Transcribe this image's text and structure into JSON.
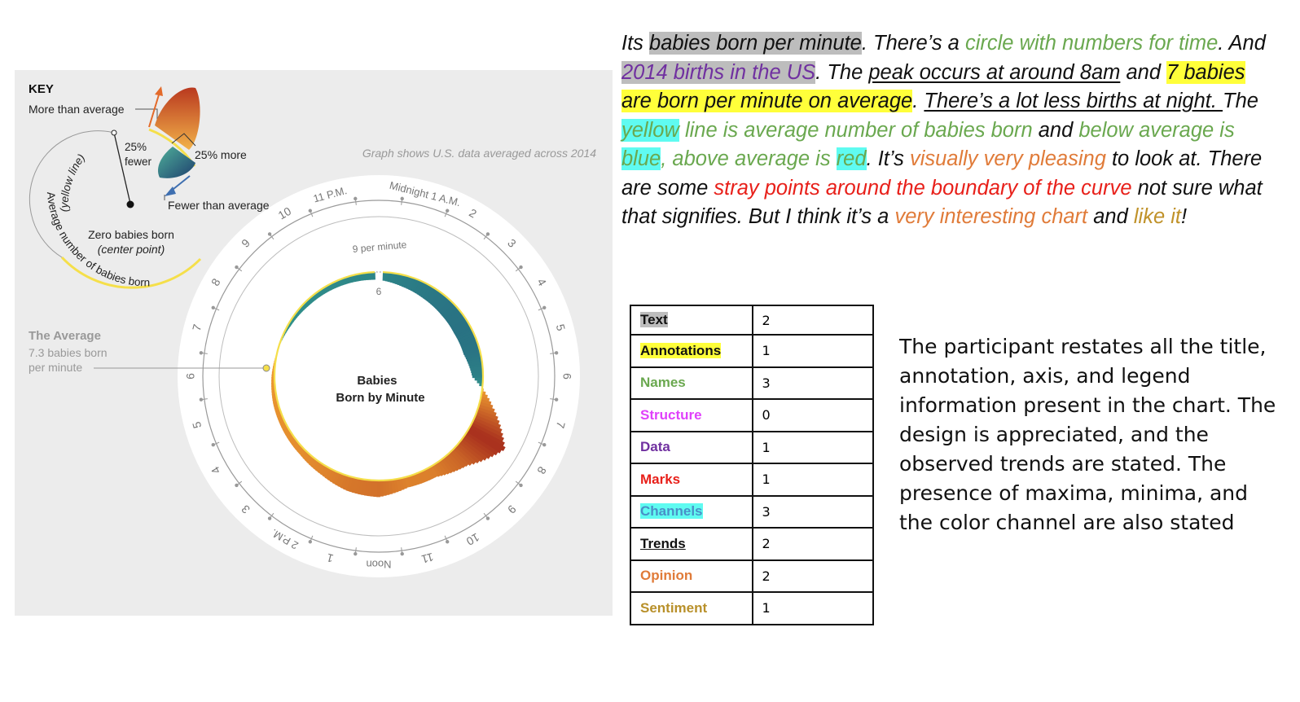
{
  "chart_data": {
    "type": "radial-area",
    "title": "Babies\nBorn by Minute",
    "note": "Graph shows U.S. data averaged across 2014",
    "average": {
      "label": "The Average",
      "value_text": "7.3 babies born\nper minute",
      "value": 7.3
    },
    "radial_ticks": [
      {
        "label": "6",
        "value": 6
      },
      {
        "label": "9 per minute",
        "value": 9
      }
    ],
    "hour_labels": [
      "Midnight 1 A.M.",
      "2",
      "3",
      "4",
      "5",
      "6",
      "7",
      "8",
      "9",
      "10",
      "11",
      "Noon",
      "1",
      "2 P.M.",
      "3",
      "4",
      "5",
      "6",
      "7",
      "8",
      "9",
      "10",
      "11 P.M."
    ],
    "key": {
      "title": "KEY",
      "more": "More than average",
      "pct_fewer": "25%\nfewer",
      "pct_more": "25% more",
      "fewer": "Fewer than average",
      "zero": "Zero babies born",
      "zero_note": "(center point)",
      "arc_label_1": "(yellow line)",
      "arc_label_2": "Average number of babies born"
    },
    "series": [
      {
        "hours": [
          0,
          1,
          2,
          3,
          4,
          5,
          6,
          7,
          8,
          9,
          10,
          11,
          12,
          13,
          14,
          15,
          16,
          17,
          18,
          19,
          20,
          21,
          22,
          23,
          24
        ],
        "values": [
          6.5,
          6.1,
          5.8,
          5.6,
          5.5,
          5.6,
          6.2,
          8.7,
          11.5,
          9.5,
          8.5,
          8.4,
          9.0,
          8.8,
          8.3,
          8.0,
          7.9,
          7.8,
          7.6,
          7.3,
          7.0,
          6.8,
          6.7,
          6.6,
          6.5
        ]
      }
    ],
    "colors": {
      "above": "#d9793a",
      "above_dark": "#a8331c",
      "below": "#2e7a8e",
      "below_dark": "#1e3f6e",
      "average_line": "#f5df4a"
    }
  },
  "critique": {
    "s01": "Its ",
    "s02": "babies born per minute",
    "s03": ". There’s a ",
    "s04": "circle with numbers for time",
    "s05": ". And ",
    "s06": "2014 births in the US",
    "s07": ". The ",
    "s08": "peak occurs at around 8am",
    "s09": " and ",
    "s10": "7 babies are born per minute on average",
    "s11": ". ",
    "s12": "There’s a lot less births at night. ",
    "s13": "The ",
    "s14": "yellow",
    "s15": " line is average number of babies born",
    "s16": " and ",
    "s17": "below average is ",
    "s18": "blue",
    "s19": ", above average is ",
    "s20": "red",
    "s21": ". It’s ",
    "s22": "visually very pleasing",
    "s23": " to look at. There are some ",
    "s24": "stray points around the boundary of the curve",
    "s25": " not sure what that signifies. But I think it’s a ",
    "s26": "very interesting chart",
    "s27": " and ",
    "s28": "like it",
    "s29": "!"
  },
  "coding_table": [
    {
      "label": "Text",
      "count": "2",
      "color": "#111111",
      "highlight": "#bdbdbd",
      "underline": false
    },
    {
      "label": "Annotations",
      "count": "1",
      "color": "#111111",
      "highlight": "#ffff3a",
      "underline": false
    },
    {
      "label": "Names",
      "count": "3",
      "color": "#6aa84f",
      "highlight": "",
      "underline": false
    },
    {
      "label": "Structure",
      "count": "0",
      "color": "#e040fb",
      "highlight": "",
      "underline": false
    },
    {
      "label": "Data",
      "count": "1",
      "color": "#7030a0",
      "highlight": "",
      "underline": false
    },
    {
      "label": "Marks",
      "count": "1",
      "color": "#e8201a",
      "highlight": "",
      "underline": false
    },
    {
      "label": "Channels",
      "count": "3",
      "color": "#4a90c8",
      "highlight": "#5ffbf1",
      "underline": false
    },
    {
      "label": "Trends",
      "count": "2",
      "color": "#111111",
      "highlight": "",
      "underline": true
    },
    {
      "label": "Opinion",
      "count": "2",
      "color": "#e07b39",
      "highlight": "",
      "underline": false
    },
    {
      "label": "Sentiment",
      "count": "1",
      "color": "#b8902a",
      "highlight": "",
      "underline": false
    }
  ],
  "summary": "The participant restates all the title, annotation, axis, and legend information present in the chart. The design is appreciated, and the observed trends are stated. The presence of maxima, minima, and the color channel are also stated"
}
